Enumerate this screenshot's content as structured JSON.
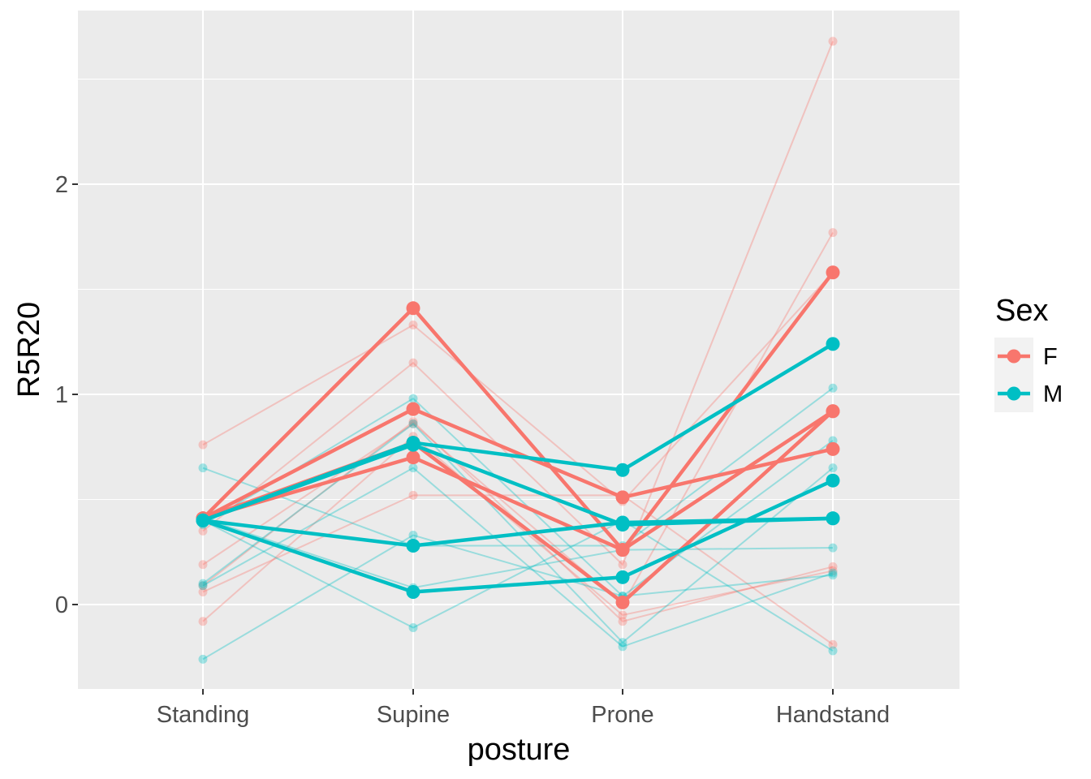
{
  "chart_data": {
    "type": "line",
    "xlabel": "posture",
    "ylabel": "R5R20",
    "categories": [
      "Standing",
      "Supine",
      "Prone",
      "Handstand"
    ],
    "ylim": [
      -0.4,
      2.83
    ],
    "yticks": [
      0,
      1,
      2
    ],
    "grid": true,
    "legend": {
      "title": "Sex",
      "placement": "right",
      "entries": [
        {
          "label": "F",
          "color": "#F8766D"
        },
        {
          "label": "M",
          "color": "#00BFC4"
        }
      ]
    },
    "background_series": [
      {
        "group": "F",
        "values": [
          0.76,
          1.33,
          0.49,
          1.58
        ]
      },
      {
        "group": "F",
        "values": [
          0.35,
          1.15,
          0.19,
          2.68
        ]
      },
      {
        "group": "F",
        "values": [
          0.19,
          0.86,
          0.0,
          1.77
        ]
      },
      {
        "group": "F",
        "values": [
          0.06,
          0.52,
          0.52,
          -0.19
        ]
      },
      {
        "group": "F",
        "values": [
          -0.08,
          0.8,
          -0.05,
          0.16
        ]
      },
      {
        "group": "F",
        "values": [
          0.09,
          0.87,
          -0.08,
          0.18
        ]
      },
      {
        "group": "M",
        "values": [
          0.65,
          0.28,
          0.28,
          1.03
        ]
      },
      {
        "group": "M",
        "values": [
          0.38,
          0.98,
          0.04,
          0.78
        ]
      },
      {
        "group": "M",
        "values": [
          0.1,
          0.86,
          -0.18,
          0.65
        ]
      },
      {
        "group": "M",
        "values": [
          0.41,
          0.08,
          0.26,
          0.27
        ]
      },
      {
        "group": "M",
        "values": [
          -0.26,
          0.33,
          0.04,
          0.14
        ]
      },
      {
        "group": "M",
        "values": [
          0.09,
          0.65,
          -0.2,
          0.15
        ]
      },
      {
        "group": "M",
        "values": [
          0.4,
          -0.11,
          0.4,
          -0.22
        ]
      }
    ],
    "highlight_series": [
      {
        "group": "F",
        "values": [
          0.41,
          1.41,
          0.26,
          0.92
        ]
      },
      {
        "group": "F",
        "values": [
          0.41,
          0.93,
          0.51,
          0.74
        ]
      },
      {
        "group": "F",
        "values": [
          0.41,
          0.7,
          0.26,
          1.58
        ]
      },
      {
        "group": "F",
        "values": [
          0.41,
          0.77,
          0.01,
          0.92
        ]
      },
      {
        "group": "M",
        "values": [
          0.4,
          0.77,
          0.64,
          1.24
        ]
      },
      {
        "group": "M",
        "values": [
          0.4,
          0.28,
          0.39,
          0.41
        ]
      },
      {
        "group": "M",
        "values": [
          0.4,
          0.76,
          0.38,
          0.41
        ]
      },
      {
        "group": "M",
        "values": [
          0.4,
          0.06,
          0.13,
          0.59
        ]
      }
    ]
  }
}
